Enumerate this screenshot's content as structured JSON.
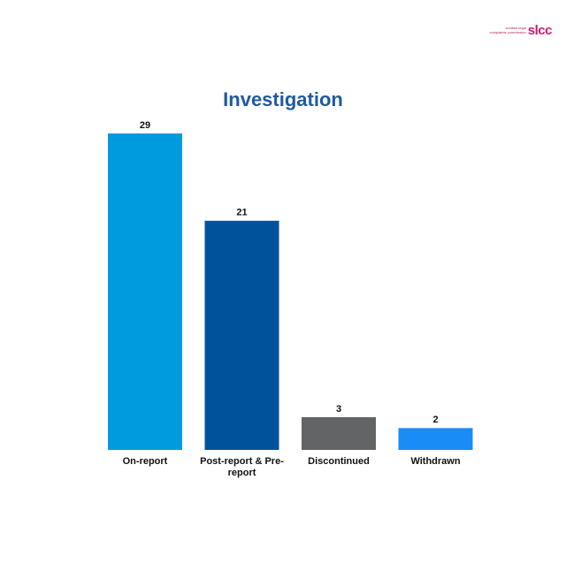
{
  "logo": {
    "mark": "slcc",
    "tagline": [
      "scottish legal",
      "complaints commission"
    ]
  },
  "chart_data": {
    "type": "bar",
    "title": "Investigation",
    "categories": [
      "On-report",
      "Post-report & Pre-report",
      "Discontinued",
      "Withdrawn"
    ],
    "values": [
      29,
      21,
      3,
      2
    ],
    "colors": [
      "#009ade",
      "#00529b",
      "#636466",
      "#1a8cf5"
    ]
  }
}
